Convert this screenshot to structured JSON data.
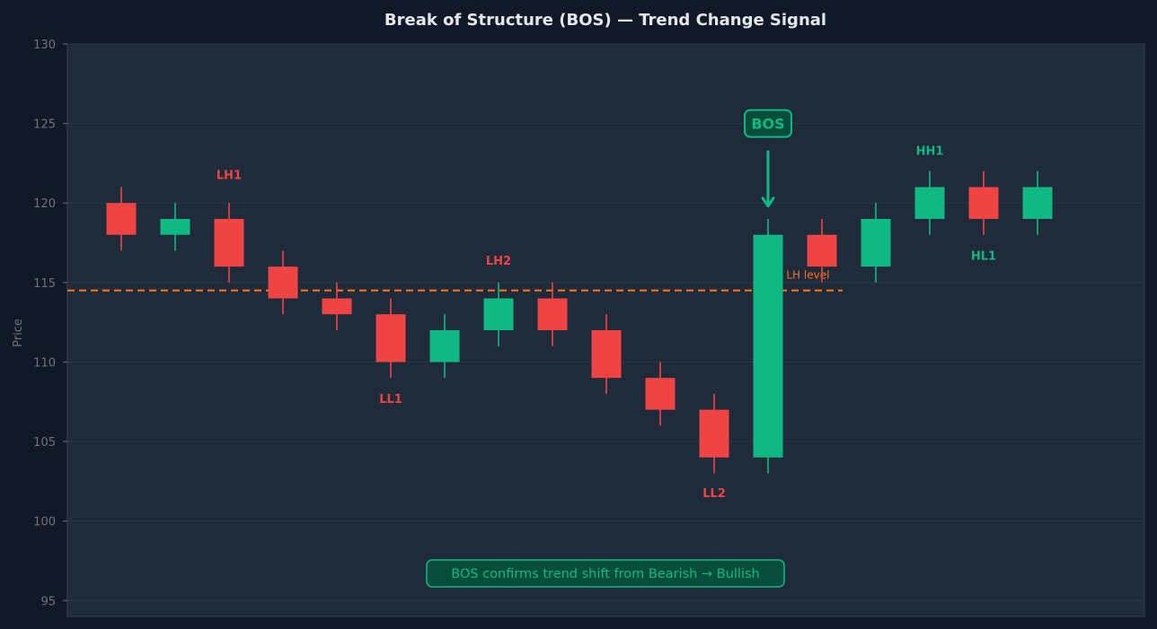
{
  "chart_data": {
    "type": "candlestick",
    "title": "Break of Structure (BOS) — Trend Change Signal",
    "ylabel": "Price",
    "xlabel": "",
    "ylim": [
      94,
      130
    ],
    "yticks": [
      95,
      100,
      105,
      110,
      115,
      120,
      125,
      130
    ],
    "grid": true,
    "colors": {
      "bull": "#10b981",
      "bear": "#ef4444",
      "level": "#f97316",
      "background": "#111827",
      "plot_bg": "#1e293b",
      "text": "#e5e7eb",
      "muted": "#6b7280"
    },
    "candles": [
      {
        "open": 120,
        "high": 121,
        "low": 117,
        "close": 118
      },
      {
        "open": 118,
        "high": 120,
        "low": 117,
        "close": 119
      },
      {
        "open": 119,
        "high": 120,
        "low": 115,
        "close": 116
      },
      {
        "open": 116,
        "high": 117,
        "low": 113,
        "close": 114
      },
      {
        "open": 114,
        "high": 115,
        "low": 112,
        "close": 113
      },
      {
        "open": 113,
        "high": 114,
        "low": 109,
        "close": 110
      },
      {
        "open": 110,
        "high": 113,
        "low": 109,
        "close": 112
      },
      {
        "open": 112,
        "high": 115,
        "low": 111,
        "close": 114
      },
      {
        "open": 114,
        "high": 115,
        "low": 111,
        "close": 112
      },
      {
        "open": 112,
        "high": 113,
        "low": 108,
        "close": 109
      },
      {
        "open": 109,
        "high": 110,
        "low": 106,
        "close": 107
      },
      {
        "open": 107,
        "high": 108,
        "low": 103,
        "close": 104
      },
      {
        "open": 104,
        "high": 119,
        "low": 103,
        "close": 118
      },
      {
        "open": 118,
        "high": 119,
        "low": 115,
        "close": 116
      },
      {
        "open": 116,
        "high": 120,
        "low": 115,
        "close": 119
      },
      {
        "open": 119,
        "high": 122,
        "low": 118,
        "close": 121
      },
      {
        "open": 121,
        "high": 122,
        "low": 118,
        "close": 119
      },
      {
        "open": 119,
        "high": 122,
        "low": 118,
        "close": 121
      }
    ],
    "level": {
      "value": 114.5,
      "label": "Last LH level",
      "end_index": 13
    },
    "annotations": [
      {
        "text": "LH1",
        "index": 2,
        "y": 121.8,
        "color": "bear"
      },
      {
        "text": "LL1",
        "index": 5,
        "y": 107.7,
        "color": "bear"
      },
      {
        "text": "LH2",
        "index": 7,
        "y": 116.4,
        "color": "bear"
      },
      {
        "text": "LL2",
        "index": 11,
        "y": 101.8,
        "color": "bear"
      },
      {
        "text": "HH1",
        "index": 15,
        "y": 123.3,
        "color": "bull"
      },
      {
        "text": "HL1",
        "index": 16,
        "y": 116.7,
        "color": "bull"
      }
    ],
    "bos": {
      "text": "BOS",
      "index": 12,
      "y": 125
    },
    "note": "BOS confirms trend shift from Bearish → Bullish"
  }
}
